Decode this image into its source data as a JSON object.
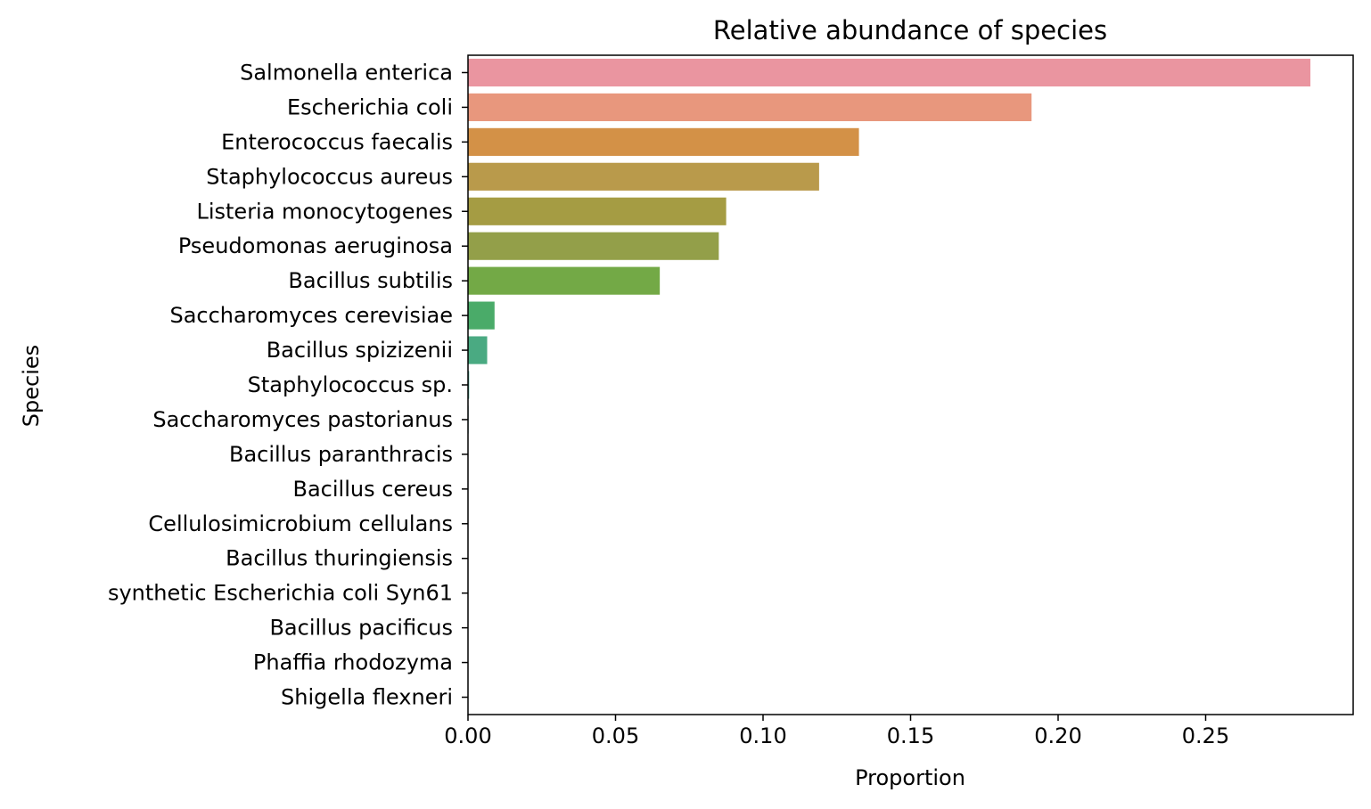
{
  "chart_data": {
    "type": "bar",
    "orientation": "horizontal",
    "title": "Relative abundance of species",
    "xlabel": "Proportion",
    "ylabel": "Species",
    "xlim": [
      0,
      0.3
    ],
    "xticks": [
      0.0,
      0.05,
      0.1,
      0.15,
      0.2,
      0.25
    ],
    "xtick_labels": [
      "0.00",
      "0.05",
      "0.10",
      "0.15",
      "0.20",
      "0.25"
    ],
    "grid": false,
    "categories": [
      "Salmonella enterica",
      "Escherichia coli",
      "Enterococcus faecalis",
      "Staphylococcus aureus",
      "Listeria monocytogenes",
      "Pseudomonas aeruginosa",
      "Bacillus subtilis",
      "Saccharomyces cerevisiae",
      "Bacillus spizizenii",
      "Staphylococcus sp.",
      "Saccharomyces pastorianus",
      "Bacillus paranthracis",
      "Bacillus cereus",
      "Cellulosimicrobium cellulans",
      "Bacillus thuringiensis",
      "synthetic Escherichia coli Syn61",
      "Bacillus pacificus",
      "Phaffia rhodozyma",
      "Shigella flexneri"
    ],
    "values": [
      0.2855,
      0.191,
      0.1325,
      0.119,
      0.0875,
      0.085,
      0.065,
      0.009,
      0.0065,
      0.0004,
      0.0002,
      0.0001,
      0.0001,
      0.0001,
      0.0001,
      0.0001,
      0.0001,
      0.0001,
      0.0001
    ],
    "colors": [
      "#ea95a0",
      "#e8977d",
      "#d39147",
      "#b99a4b",
      "#a59c43",
      "#939f49",
      "#73a946",
      "#4aab69",
      "#4aaa82",
      "#4aa995",
      "#4aa8a5",
      "#4ba7b5",
      "#50a5c4",
      "#5ba1d6",
      "#8499e6",
      "#a38ce9",
      "#c680e8",
      "#e37fcd",
      "#ea86b5"
    ]
  }
}
